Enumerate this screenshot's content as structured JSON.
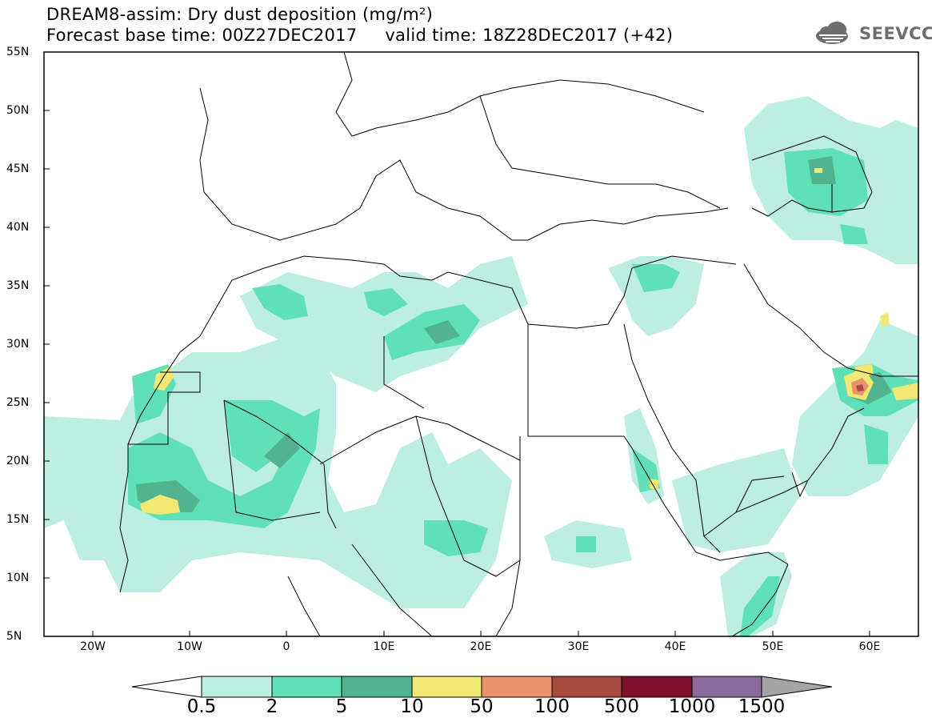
{
  "title": {
    "line1": "DREAM8-assim: Dry dust deposition (mg/m²)",
    "line2": "Forecast base time: 00Z27DEC2017     valid time: 18Z28DEC2017 (+42)"
  },
  "logo": {
    "text": "SEEVCCC",
    "icon": "cloud-icon"
  },
  "map": {
    "lon_range": [
      -25,
      65
    ],
    "lat_range": [
      5,
      55
    ],
    "lat_labels": [
      "55N",
      "50N",
      "45N",
      "40N",
      "35N",
      "30N",
      "25N",
      "20N",
      "15N",
      "10N",
      "5N"
    ],
    "lon_labels": [
      "20W",
      "10W",
      "0",
      "10E",
      "20E",
      "30E",
      "40E",
      "50E",
      "60E"
    ]
  },
  "colorbar": {
    "labels": [
      "0.5",
      "2",
      "5",
      "10",
      "50",
      "100",
      "500",
      "1000",
      "1500"
    ],
    "colors": [
      "#ffffff",
      "#bdeee2",
      "#5fe0b6",
      "#52b48f",
      "#f3e873",
      "#ea926b",
      "#a84a3d",
      "#7d0f2b",
      "#8a6a9a",
      "#a5a5a5"
    ]
  }
}
